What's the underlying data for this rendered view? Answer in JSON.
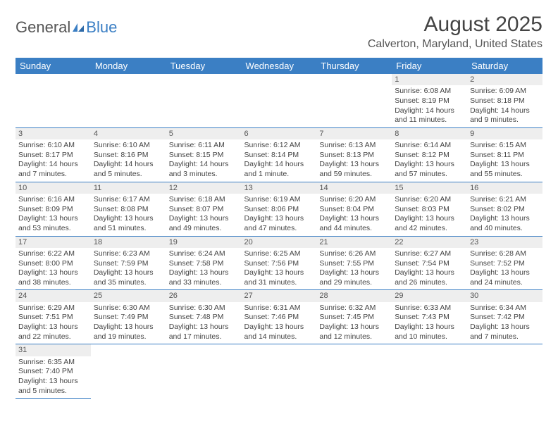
{
  "logo": {
    "part1": "General",
    "part2": "Blue"
  },
  "title": "August 2025",
  "location": "Calverton, Maryland, United States",
  "colors": {
    "header_bg": "#3b7fc4",
    "header_text": "#ffffff",
    "daynum_bg": "#eeeeee",
    "border": "#3b7fc4"
  },
  "weekdays": [
    "Sunday",
    "Monday",
    "Tuesday",
    "Wednesday",
    "Thursday",
    "Friday",
    "Saturday"
  ],
  "weeks": [
    [
      null,
      null,
      null,
      null,
      null,
      {
        "n": "1",
        "sr": "6:08 AM",
        "ss": "8:19 PM",
        "dl": "14 hours and 11 minutes."
      },
      {
        "n": "2",
        "sr": "6:09 AM",
        "ss": "8:18 PM",
        "dl": "14 hours and 9 minutes."
      }
    ],
    [
      {
        "n": "3",
        "sr": "6:10 AM",
        "ss": "8:17 PM",
        "dl": "14 hours and 7 minutes."
      },
      {
        "n": "4",
        "sr": "6:10 AM",
        "ss": "8:16 PM",
        "dl": "14 hours and 5 minutes."
      },
      {
        "n": "5",
        "sr": "6:11 AM",
        "ss": "8:15 PM",
        "dl": "14 hours and 3 minutes."
      },
      {
        "n": "6",
        "sr": "6:12 AM",
        "ss": "8:14 PM",
        "dl": "14 hours and 1 minute."
      },
      {
        "n": "7",
        "sr": "6:13 AM",
        "ss": "8:13 PM",
        "dl": "13 hours and 59 minutes."
      },
      {
        "n": "8",
        "sr": "6:14 AM",
        "ss": "8:12 PM",
        "dl": "13 hours and 57 minutes."
      },
      {
        "n": "9",
        "sr": "6:15 AM",
        "ss": "8:11 PM",
        "dl": "13 hours and 55 minutes."
      }
    ],
    [
      {
        "n": "10",
        "sr": "6:16 AM",
        "ss": "8:09 PM",
        "dl": "13 hours and 53 minutes."
      },
      {
        "n": "11",
        "sr": "6:17 AM",
        "ss": "8:08 PM",
        "dl": "13 hours and 51 minutes."
      },
      {
        "n": "12",
        "sr": "6:18 AM",
        "ss": "8:07 PM",
        "dl": "13 hours and 49 minutes."
      },
      {
        "n": "13",
        "sr": "6:19 AM",
        "ss": "8:06 PM",
        "dl": "13 hours and 47 minutes."
      },
      {
        "n": "14",
        "sr": "6:20 AM",
        "ss": "8:04 PM",
        "dl": "13 hours and 44 minutes."
      },
      {
        "n": "15",
        "sr": "6:20 AM",
        "ss": "8:03 PM",
        "dl": "13 hours and 42 minutes."
      },
      {
        "n": "16",
        "sr": "6:21 AM",
        "ss": "8:02 PM",
        "dl": "13 hours and 40 minutes."
      }
    ],
    [
      {
        "n": "17",
        "sr": "6:22 AM",
        "ss": "8:00 PM",
        "dl": "13 hours and 38 minutes."
      },
      {
        "n": "18",
        "sr": "6:23 AM",
        "ss": "7:59 PM",
        "dl": "13 hours and 35 minutes."
      },
      {
        "n": "19",
        "sr": "6:24 AM",
        "ss": "7:58 PM",
        "dl": "13 hours and 33 minutes."
      },
      {
        "n": "20",
        "sr": "6:25 AM",
        "ss": "7:56 PM",
        "dl": "13 hours and 31 minutes."
      },
      {
        "n": "21",
        "sr": "6:26 AM",
        "ss": "7:55 PM",
        "dl": "13 hours and 29 minutes."
      },
      {
        "n": "22",
        "sr": "6:27 AM",
        "ss": "7:54 PM",
        "dl": "13 hours and 26 minutes."
      },
      {
        "n": "23",
        "sr": "6:28 AM",
        "ss": "7:52 PM",
        "dl": "13 hours and 24 minutes."
      }
    ],
    [
      {
        "n": "24",
        "sr": "6:29 AM",
        "ss": "7:51 PM",
        "dl": "13 hours and 22 minutes."
      },
      {
        "n": "25",
        "sr": "6:30 AM",
        "ss": "7:49 PM",
        "dl": "13 hours and 19 minutes."
      },
      {
        "n": "26",
        "sr": "6:30 AM",
        "ss": "7:48 PM",
        "dl": "13 hours and 17 minutes."
      },
      {
        "n": "27",
        "sr": "6:31 AM",
        "ss": "7:46 PM",
        "dl": "13 hours and 14 minutes."
      },
      {
        "n": "28",
        "sr": "6:32 AM",
        "ss": "7:45 PM",
        "dl": "13 hours and 12 minutes."
      },
      {
        "n": "29",
        "sr": "6:33 AM",
        "ss": "7:43 PM",
        "dl": "13 hours and 10 minutes."
      },
      {
        "n": "30",
        "sr": "6:34 AM",
        "ss": "7:42 PM",
        "dl": "13 hours and 7 minutes."
      }
    ],
    [
      {
        "n": "31",
        "sr": "6:35 AM",
        "ss": "7:40 PM",
        "dl": "13 hours and 5 minutes."
      },
      null,
      null,
      null,
      null,
      null,
      null
    ]
  ],
  "labels": {
    "sunrise": "Sunrise:",
    "sunset": "Sunset:",
    "daylight": "Daylight:"
  }
}
